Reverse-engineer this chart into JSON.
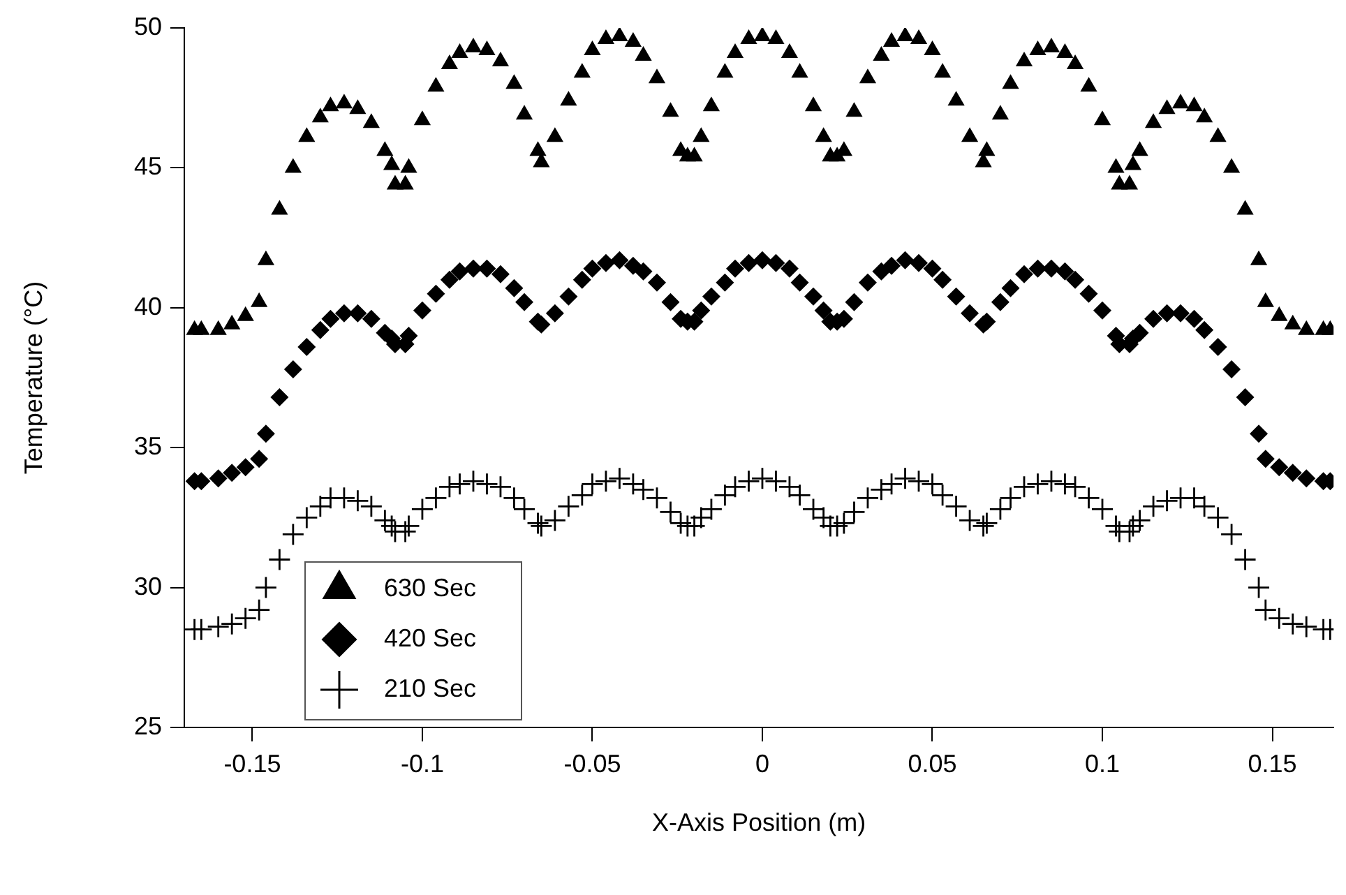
{
  "chart_data": {
    "type": "scatter",
    "xlabel": "X-Axis Position (m)",
    "ylabel": "Temperature (°C)",
    "x": [
      -0.167,
      -0.165,
      -0.16,
      -0.156,
      -0.152,
      -0.148,
      -0.146,
      -0.142,
      -0.138,
      -0.134,
      -0.13,
      -0.127,
      -0.123,
      -0.119,
      -0.115,
      -0.111,
      -0.109,
      -0.108,
      -0.105,
      -0.104,
      -0.1,
      -0.096,
      -0.092,
      -0.089,
      -0.085,
      -0.081,
      -0.077,
      -0.073,
      -0.07,
      -0.066,
      -0.065,
      -0.061,
      -0.057,
      -0.053,
      -0.05,
      -0.046,
      -0.042,
      -0.038,
      -0.035,
      -0.031,
      -0.027,
      -0.024,
      -0.022,
      -0.02,
      -0.018,
      -0.015,
      -0.011,
      -0.008,
      -0.004,
      0,
      0.004,
      0.008,
      0.011,
      0.015,
      0.018,
      0.02,
      0.022,
      0.024,
      0.027,
      0.031,
      0.035,
      0.038,
      0.042,
      0.046,
      0.05,
      0.053,
      0.057,
      0.061,
      0.065,
      0.066,
      0.07,
      0.073,
      0.077,
      0.081,
      0.085,
      0.089,
      0.092,
      0.096,
      0.1,
      0.104,
      0.105,
      0.108,
      0.109,
      0.111,
      0.115,
      0.119,
      0.123,
      0.127,
      0.13,
      0.134,
      0.138,
      0.142,
      0.146,
      0.148,
      0.152,
      0.156,
      0.16,
      0.165,
      0.167
    ],
    "series": [
      {
        "name": "630 Sec",
        "color": "#000000",
        "marker": "triangle",
        "values": [
          39.2,
          39.2,
          39.2,
          39.4,
          39.7,
          40.2,
          41.7,
          43.5,
          45.0,
          46.1,
          46.8,
          47.2,
          47.3,
          47.1,
          46.6,
          45.6,
          45.1,
          44.4,
          44.4,
          45.0,
          46.7,
          47.9,
          48.7,
          49.1,
          49.3,
          49.2,
          48.8,
          48.0,
          46.9,
          45.6,
          45.2,
          46.1,
          47.4,
          48.4,
          49.2,
          49.6,
          49.7,
          49.5,
          49.0,
          48.2,
          47.0,
          45.6,
          45.4,
          45.4,
          46.1,
          47.2,
          48.4,
          49.1,
          49.6,
          49.7,
          49.6,
          49.1,
          48.4,
          47.2,
          46.1,
          45.4,
          45.4,
          45.6,
          47.0,
          48.2,
          49.0,
          49.5,
          49.7,
          49.6,
          49.2,
          48.4,
          47.4,
          46.1,
          45.2,
          45.6,
          46.9,
          48.0,
          48.8,
          49.2,
          49.3,
          49.1,
          48.7,
          47.9,
          46.7,
          45.0,
          44.4,
          44.4,
          45.1,
          45.6,
          46.6,
          47.1,
          47.3,
          47.2,
          46.8,
          46.1,
          45.0,
          43.5,
          41.7,
          40.2,
          39.7,
          39.4,
          39.2,
          39.2,
          39.2
        ]
      },
      {
        "name": "420 Sec",
        "color": "#000000",
        "marker": "diamond",
        "values": [
          33.8,
          33.8,
          33.9,
          34.1,
          34.3,
          34.6,
          35.5,
          36.8,
          37.8,
          38.6,
          39.2,
          39.6,
          39.8,
          39.8,
          39.6,
          39.1,
          38.9,
          38.7,
          38.7,
          39.0,
          39.9,
          40.5,
          41.0,
          41.3,
          41.4,
          41.4,
          41.2,
          40.7,
          40.2,
          39.5,
          39.4,
          39.8,
          40.4,
          41.0,
          41.4,
          41.6,
          41.7,
          41.5,
          41.3,
          40.9,
          40.2,
          39.6,
          39.5,
          39.5,
          39.9,
          40.4,
          40.9,
          41.4,
          41.6,
          41.7,
          41.6,
          41.4,
          40.9,
          40.4,
          39.9,
          39.5,
          39.5,
          39.6,
          40.2,
          40.9,
          41.3,
          41.5,
          41.7,
          41.6,
          41.4,
          41.0,
          40.4,
          39.8,
          39.4,
          39.5,
          40.2,
          40.7,
          41.2,
          41.4,
          41.4,
          41.3,
          41.0,
          40.5,
          39.9,
          39.0,
          38.7,
          38.7,
          38.9,
          39.1,
          39.6,
          39.8,
          39.8,
          39.6,
          39.2,
          38.6,
          37.8,
          36.8,
          35.5,
          34.6,
          34.3,
          34.1,
          33.9,
          33.8,
          33.8
        ]
      },
      {
        "name": "210 Sec",
        "color": "#000000",
        "marker": "cross",
        "values": [
          28.5,
          28.5,
          28.6,
          28.7,
          28.9,
          29.2,
          30.0,
          31.0,
          31.9,
          32.5,
          32.9,
          33.2,
          33.2,
          33.1,
          32.9,
          32.4,
          32.2,
          32.0,
          32.0,
          32.2,
          32.8,
          33.2,
          33.6,
          33.7,
          33.8,
          33.7,
          33.6,
          33.2,
          32.8,
          32.3,
          32.2,
          32.4,
          32.9,
          33.3,
          33.7,
          33.8,
          33.9,
          33.7,
          33.5,
          33.2,
          32.7,
          32.3,
          32.2,
          32.2,
          32.5,
          32.8,
          33.3,
          33.6,
          33.8,
          33.9,
          33.8,
          33.6,
          33.3,
          32.8,
          32.5,
          32.2,
          32.2,
          32.3,
          32.7,
          33.2,
          33.5,
          33.7,
          33.9,
          33.8,
          33.7,
          33.3,
          32.9,
          32.4,
          32.2,
          32.3,
          32.8,
          33.2,
          33.6,
          33.7,
          33.8,
          33.7,
          33.6,
          33.2,
          32.8,
          32.2,
          32.0,
          32.0,
          32.2,
          32.4,
          32.9,
          33.1,
          33.2,
          33.2,
          32.9,
          32.5,
          31.9,
          31.0,
          30.0,
          29.2,
          28.9,
          28.7,
          28.6,
          28.5,
          28.5
        ]
      }
    ],
    "xlim": [
      -0.17,
      0.168
    ],
    "xticks": [
      -0.15,
      -0.1,
      -0.05,
      0,
      0.05,
      0.1,
      0.15
    ],
    "ylim": [
      25,
      50
    ],
    "yticks": [
      25,
      30,
      35,
      40,
      45,
      50
    ],
    "grid": false,
    "legend": "bottom left"
  }
}
